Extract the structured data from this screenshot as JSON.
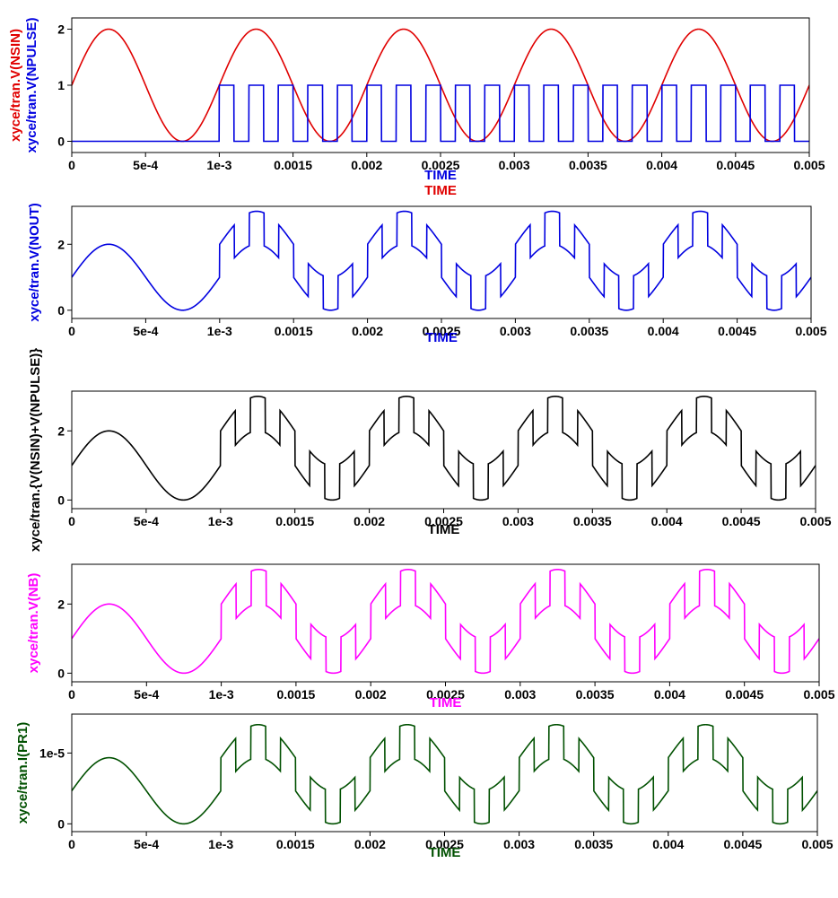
{
  "chart_data": [
    {
      "type": "line",
      "xlabel": "TIME",
      "xlabel2": "TIME",
      "ylabel_lines": [
        "xyce/tran.V(NSIN)",
        "xyce/tran.V(NPULSE)"
      ],
      "xlim": [
        0,
        0.005
      ],
      "ylim": [
        -0.2,
        2.2
      ],
      "x_ticks": [
        0,
        0.0005,
        0.001,
        0.0015,
        0.002,
        0.0025,
        0.003,
        0.0035,
        0.004,
        0.0045,
        0.005
      ],
      "x_tick_labels": [
        "0",
        "5e-4",
        "1e-3",
        "0.0015",
        "0.002",
        "0.0025",
        "0.003",
        "0.0035",
        "0.004",
        "0.0045",
        "0.005"
      ],
      "y_ticks": [
        0,
        1,
        2
      ],
      "y_tick_labels": [
        "0",
        "1",
        "2"
      ],
      "grid": false,
      "series": [
        {
          "name": "xyce/tran.V(NSIN)",
          "color": "#e00000",
          "function": "sin",
          "offset": 1,
          "amplitude": 1,
          "frequency": 1000
        },
        {
          "name": "xyce/tran.V(NPULSE)",
          "color": "#0000e0",
          "function": "pulse",
          "start": 0.001,
          "period": 0.0002,
          "high_start": 0.0,
          "high_end": 0.0001,
          "low": 0,
          "high": 1
        }
      ]
    },
    {
      "type": "line",
      "xlabel": "TIME",
      "ylabel_lines": [
        "xyce/tran.V(NOUT)"
      ],
      "xlim": [
        0,
        0.005
      ],
      "ylim": [
        -0.25,
        3.15
      ],
      "x_ticks": [
        0,
        0.0005,
        0.001,
        0.0015,
        0.002,
        0.0025,
        0.003,
        0.0035,
        0.004,
        0.0045,
        0.005
      ],
      "x_tick_labels": [
        "0",
        "5e-4",
        "1e-3",
        "0.0015",
        "0.002",
        "0.0025",
        "0.003",
        "0.0035",
        "0.004",
        "0.0045",
        "0.005"
      ],
      "y_ticks": [
        0,
        2
      ],
      "y_tick_labels": [
        "0",
        "2"
      ],
      "grid": false,
      "series": [
        {
          "name": "xyce/tran.V(NOUT)",
          "color": "#0000e0",
          "function": "sum",
          "scale": 1
        }
      ]
    },
    {
      "type": "line",
      "xlabel": "TIME",
      "ylabel_lines": [
        "xyce/tran.{V(NSIN)+V(NPULSE)}"
      ],
      "xlim": [
        0,
        0.005
      ],
      "ylim": [
        -0.25,
        3.15
      ],
      "x_ticks": [
        0,
        0.0005,
        0.001,
        0.0015,
        0.002,
        0.0025,
        0.003,
        0.0035,
        0.004,
        0.0045,
        0.005
      ],
      "x_tick_labels": [
        "0",
        "5e-4",
        "1e-3",
        "0.0015",
        "0.002",
        "0.0025",
        "0.003",
        "0.0035",
        "0.004",
        "0.0045",
        "0.005"
      ],
      "y_ticks": [
        0,
        2
      ],
      "y_tick_labels": [
        "0",
        "2"
      ],
      "grid": false,
      "series": [
        {
          "name": "xyce/tran.{V(NSIN)+V(NPULSE)}",
          "color": "#000000",
          "function": "sum",
          "scale": 1
        }
      ]
    },
    {
      "type": "line",
      "xlabel": "TIME",
      "ylabel_lines": [
        "xyce/tran.V(NB)"
      ],
      "xlim": [
        0,
        0.005
      ],
      "ylim": [
        -0.25,
        3.15
      ],
      "x_ticks": [
        0,
        0.0005,
        0.001,
        0.0015,
        0.002,
        0.0025,
        0.003,
        0.0035,
        0.004,
        0.0045,
        0.005
      ],
      "x_tick_labels": [
        "0",
        "5e-4",
        "1e-3",
        "0.0015",
        "0.002",
        "0.0025",
        "0.003",
        "0.0035",
        "0.004",
        "0.0045",
        "0.005"
      ],
      "y_ticks": [
        0,
        2
      ],
      "y_tick_labels": [
        "0",
        "2"
      ],
      "grid": false,
      "series": [
        {
          "name": "xyce/tran.V(NB)",
          "color": "#ff00ff",
          "function": "sum",
          "scale": 1
        }
      ]
    },
    {
      "type": "line",
      "xlabel": "TIME",
      "ylabel_lines": [
        "xyce/tran.I(PR1)"
      ],
      "xlim": [
        0,
        0.005
      ],
      "ylim": [
        -1.1e-06,
        1.55e-05
      ],
      "x_ticks": [
        0,
        0.0005,
        0.001,
        0.0015,
        0.002,
        0.0025,
        0.003,
        0.0035,
        0.004,
        0.0045,
        0.005
      ],
      "x_tick_labels": [
        "0",
        "5e-4",
        "1e-3",
        "0.0015",
        "0.002",
        "0.0025",
        "0.003",
        "0.0035",
        "0.004",
        "0.0045",
        "0.005"
      ],
      "y_ticks": [
        0,
        1e-05
      ],
      "y_tick_labels": [
        "0",
        "1e-5"
      ],
      "grid": false,
      "series": [
        {
          "name": "xyce/tran.I(PR1)",
          "color": "#005000",
          "function": "sum",
          "scale": 4.67e-06
        }
      ]
    }
  ],
  "colors": {
    "panel1_xlabel": "#0000e0",
    "panel1_xlabel2": "#e00000",
    "panel1_ylabel": [
      "#e00000",
      "#0000e0"
    ],
    "panel2_label": "#0000e0",
    "panel3_label": "#000000",
    "panel4_label": "#ff00ff",
    "panel5_label": "#005000"
  }
}
